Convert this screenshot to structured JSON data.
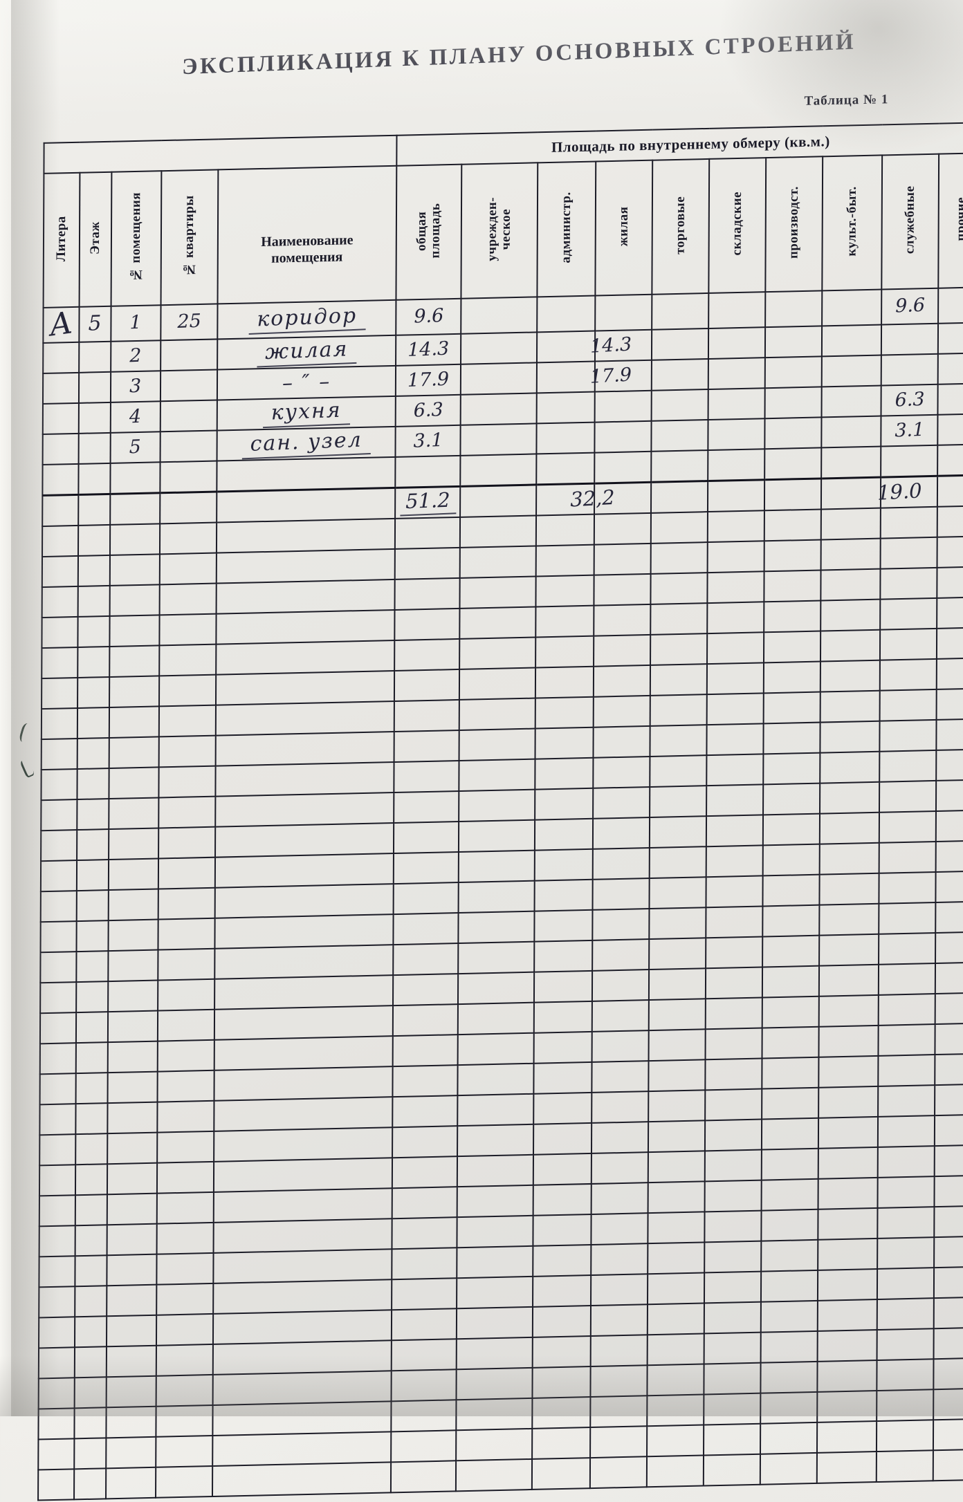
{
  "page": {
    "title": "ЭКСПЛИКАЦИЯ К ПЛАНУ ОСНОВНЫХ СТРОЕНИЙ",
    "table_label": "Таблица № 1"
  },
  "table": {
    "area_group_caption": "Площадь по внутреннему обмеру (кв.м.)",
    "left_columns": [
      "Литера",
      "Этаж",
      "№ помещения",
      "№ квартиры",
      "Наименование помещения"
    ],
    "area_columns": [
      "общая площадь",
      "учрежден- ческое",
      "администр.",
      "жилая",
      "торговые",
      "складские",
      "производст.",
      "культ.-быт.",
      "служебные",
      "прочие"
    ],
    "rows": [
      {
        "kind": "data",
        "cells": [
          "А",
          "5",
          "1",
          "25",
          "коридор",
          "9.6",
          "",
          "",
          "",
          "",
          "",
          "",
          "",
          "9.6",
          ""
        ]
      },
      {
        "kind": "data",
        "cells": [
          "",
          "",
          "2",
          "",
          "жилая",
          "14.3",
          "",
          "",
          "14.3",
          "",
          "",
          "",
          "",
          "",
          ""
        ]
      },
      {
        "kind": "data",
        "cells": [
          "",
          "",
          "3",
          "",
          "– ″ –",
          "17.9",
          "",
          "",
          "17.9",
          "",
          "",
          "",
          "",
          "",
          ""
        ]
      },
      {
        "kind": "data",
        "cells": [
          "",
          "",
          "4",
          "",
          "кухня",
          "6.3",
          "",
          "",
          "",
          "",
          "",
          "",
          "",
          "6.3",
          ""
        ]
      },
      {
        "kind": "data",
        "cells": [
          "",
          "",
          "5",
          "",
          "сан. узел",
          "3.1",
          "",
          "",
          "",
          "",
          "",
          "",
          "",
          "3.1",
          ""
        ]
      },
      {
        "kind": "spacer",
        "cells": [
          "",
          "",
          "",
          "",
          "",
          "",
          "",
          "",
          "",
          "",
          "",
          "",
          "",
          "",
          ""
        ]
      },
      {
        "kind": "totals",
        "cells": [
          "",
          "",
          "",
          "",
          "",
          "51.2",
          "",
          "",
          "32,2",
          "",
          "",
          "",
          "",
          "19.0",
          ""
        ]
      }
    ],
    "empty_rows_after": 32
  }
}
